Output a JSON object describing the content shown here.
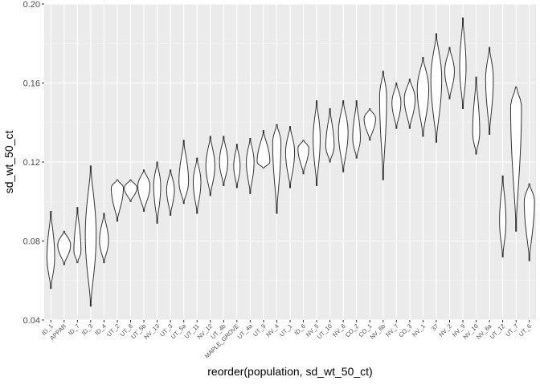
{
  "chart_data": {
    "type": "violin",
    "xlabel": "reorder(population, sd_wt_50_ct)",
    "ylabel": "sd_wt_50_ct",
    "ylim": [
      0.04,
      0.2
    ],
    "y_ticks": [
      "0.04",
      "0.08",
      "0.12",
      "0.16",
      "0.20"
    ],
    "y_tick_values": [
      0.04,
      0.08,
      0.12,
      0.16,
      0.2
    ],
    "grid": true,
    "colors": {
      "panel": "#ebebeb",
      "grid": "#ffffff",
      "outline": "#333333",
      "fill": "#ffffff"
    },
    "violins": [
      {
        "label": "ID_1",
        "min": 0.056,
        "max": 0.095,
        "mode": 0.072,
        "mode2": null,
        "width": 0.6
      },
      {
        "label": "APPAR",
        "min": 0.068,
        "max": 0.085,
        "mode": 0.078,
        "mode2": null,
        "width": 1.0
      },
      {
        "label": "ID_7",
        "min": 0.069,
        "max": 0.097,
        "mode": 0.075,
        "mode2": null,
        "width": 0.55
      },
      {
        "label": "ID_3",
        "min": 0.047,
        "max": 0.118,
        "mode": 0.083,
        "mode2": null,
        "width": 0.85
      },
      {
        "label": "ID_4",
        "min": 0.069,
        "max": 0.094,
        "mode": 0.08,
        "mode2": null,
        "width": 0.7
      },
      {
        "label": "UT_2",
        "min": 0.09,
        "max": 0.111,
        "mode": 0.107,
        "mode2": null,
        "width": 0.95
      },
      {
        "label": "UT_8",
        "min": 0.1,
        "max": 0.111,
        "mode": 0.107,
        "mode2": null,
        "width": 1.0
      },
      {
        "label": "UT_5b",
        "min": 0.095,
        "max": 0.116,
        "mode": 0.108,
        "mode2": null,
        "width": 0.95
      },
      {
        "label": "NV_13",
        "min": 0.089,
        "max": 0.12,
        "mode": 0.108,
        "mode2": null,
        "width": 0.55
      },
      {
        "label": "UT_3",
        "min": 0.093,
        "max": 0.116,
        "mode": 0.106,
        "mode2": null,
        "width": 0.6
      },
      {
        "label": "UT_5a",
        "min": 0.099,
        "max": 0.131,
        "mode": 0.11,
        "mode2": null,
        "width": 0.75
      },
      {
        "label": "UT_11",
        "min": 0.094,
        "max": 0.122,
        "mode": 0.11,
        "mode2": null,
        "width": 0.6
      },
      {
        "label": "NV_12",
        "min": 0.103,
        "max": 0.133,
        "mode": 0.118,
        "mode2": null,
        "width": 0.7
      },
      {
        "label": "UT_4b",
        "min": 0.108,
        "max": 0.133,
        "mode": 0.12,
        "mode2": null,
        "width": 0.65
      },
      {
        "label": "MAPLE_GROVE",
        "min": 0.107,
        "max": 0.129,
        "mode": 0.118,
        "mode2": null,
        "width": 0.5
      },
      {
        "label": "UT_4a",
        "min": 0.104,
        "max": 0.132,
        "mode": 0.12,
        "mode2": null,
        "width": 0.6
      },
      {
        "label": "UT_9",
        "min": 0.117,
        "max": 0.136,
        "mode": 0.12,
        "mode2": null,
        "width": 1.0
      },
      {
        "label": "NV_4",
        "min": 0.094,
        "max": 0.139,
        "mode": 0.13,
        "mode2": null,
        "width": 0.65
      },
      {
        "label": "UT_1",
        "min": 0.107,
        "max": 0.138,
        "mode": 0.125,
        "mode2": null,
        "width": 0.7
      },
      {
        "label": "ID_6",
        "min": 0.114,
        "max": 0.131,
        "mode": 0.127,
        "mode2": null,
        "width": 0.85
      },
      {
        "label": "NV_5",
        "min": 0.108,
        "max": 0.151,
        "mode": 0.132,
        "mode2": null,
        "width": 0.55
      },
      {
        "label": "UT_10",
        "min": 0.12,
        "max": 0.147,
        "mode": 0.128,
        "mode2": null,
        "width": 0.65
      },
      {
        "label": "NV_8",
        "min": 0.115,
        "max": 0.151,
        "mode": 0.135,
        "mode2": null,
        "width": 0.75
      },
      {
        "label": "CO_2",
        "min": 0.122,
        "max": 0.151,
        "mode": 0.132,
        "mode2": null,
        "width": 0.6
      },
      {
        "label": "CO_1",
        "min": 0.131,
        "max": 0.147,
        "mode": 0.142,
        "mode2": null,
        "width": 0.9
      },
      {
        "label": "NV_6b",
        "min": 0.111,
        "max": 0.166,
        "mode": 0.153,
        "mode2": null,
        "width": 0.55
      },
      {
        "label": "NV_7",
        "min": 0.137,
        "max": 0.16,
        "mode": 0.15,
        "mode2": null,
        "width": 0.7
      },
      {
        "label": "CO_3",
        "min": 0.137,
        "max": 0.162,
        "mode": 0.152,
        "mode2": null,
        "width": 0.85
      },
      {
        "label": "NV_1",
        "min": 0.133,
        "max": 0.173,
        "mode": 0.157,
        "mode2": null,
        "width": 0.9
      },
      {
        "label": "37",
        "min": 0.13,
        "max": 0.185,
        "mode": 0.162,
        "mode2": null,
        "width": 0.85
      },
      {
        "label": "NV_2",
        "min": 0.152,
        "max": 0.178,
        "mode": 0.166,
        "mode2": null,
        "width": 0.75
      },
      {
        "label": "NV_9",
        "min": 0.147,
        "max": 0.193,
        "mode": 0.168,
        "mode2": null,
        "width": 0.5
      },
      {
        "label": "NV_10",
        "min": 0.124,
        "max": 0.163,
        "mode": 0.135,
        "mode2": null,
        "width": 0.55
      },
      {
        "label": "NV_6a",
        "min": 0.134,
        "max": 0.178,
        "mode": 0.162,
        "mode2": null,
        "width": 0.6
      },
      {
        "label": "UT_12",
        "min": 0.072,
        "max": 0.113,
        "mode": 0.09,
        "mode2": null,
        "width": 0.5
      },
      {
        "label": "UT_7",
        "min": 0.085,
        "max": 0.158,
        "mode": 0.148,
        "mode2": null,
        "width": 0.85
      },
      {
        "label": "UT_6",
        "min": 0.07,
        "max": 0.109,
        "mode": 0.1,
        "mode2": null,
        "width": 0.8
      }
    ]
  }
}
